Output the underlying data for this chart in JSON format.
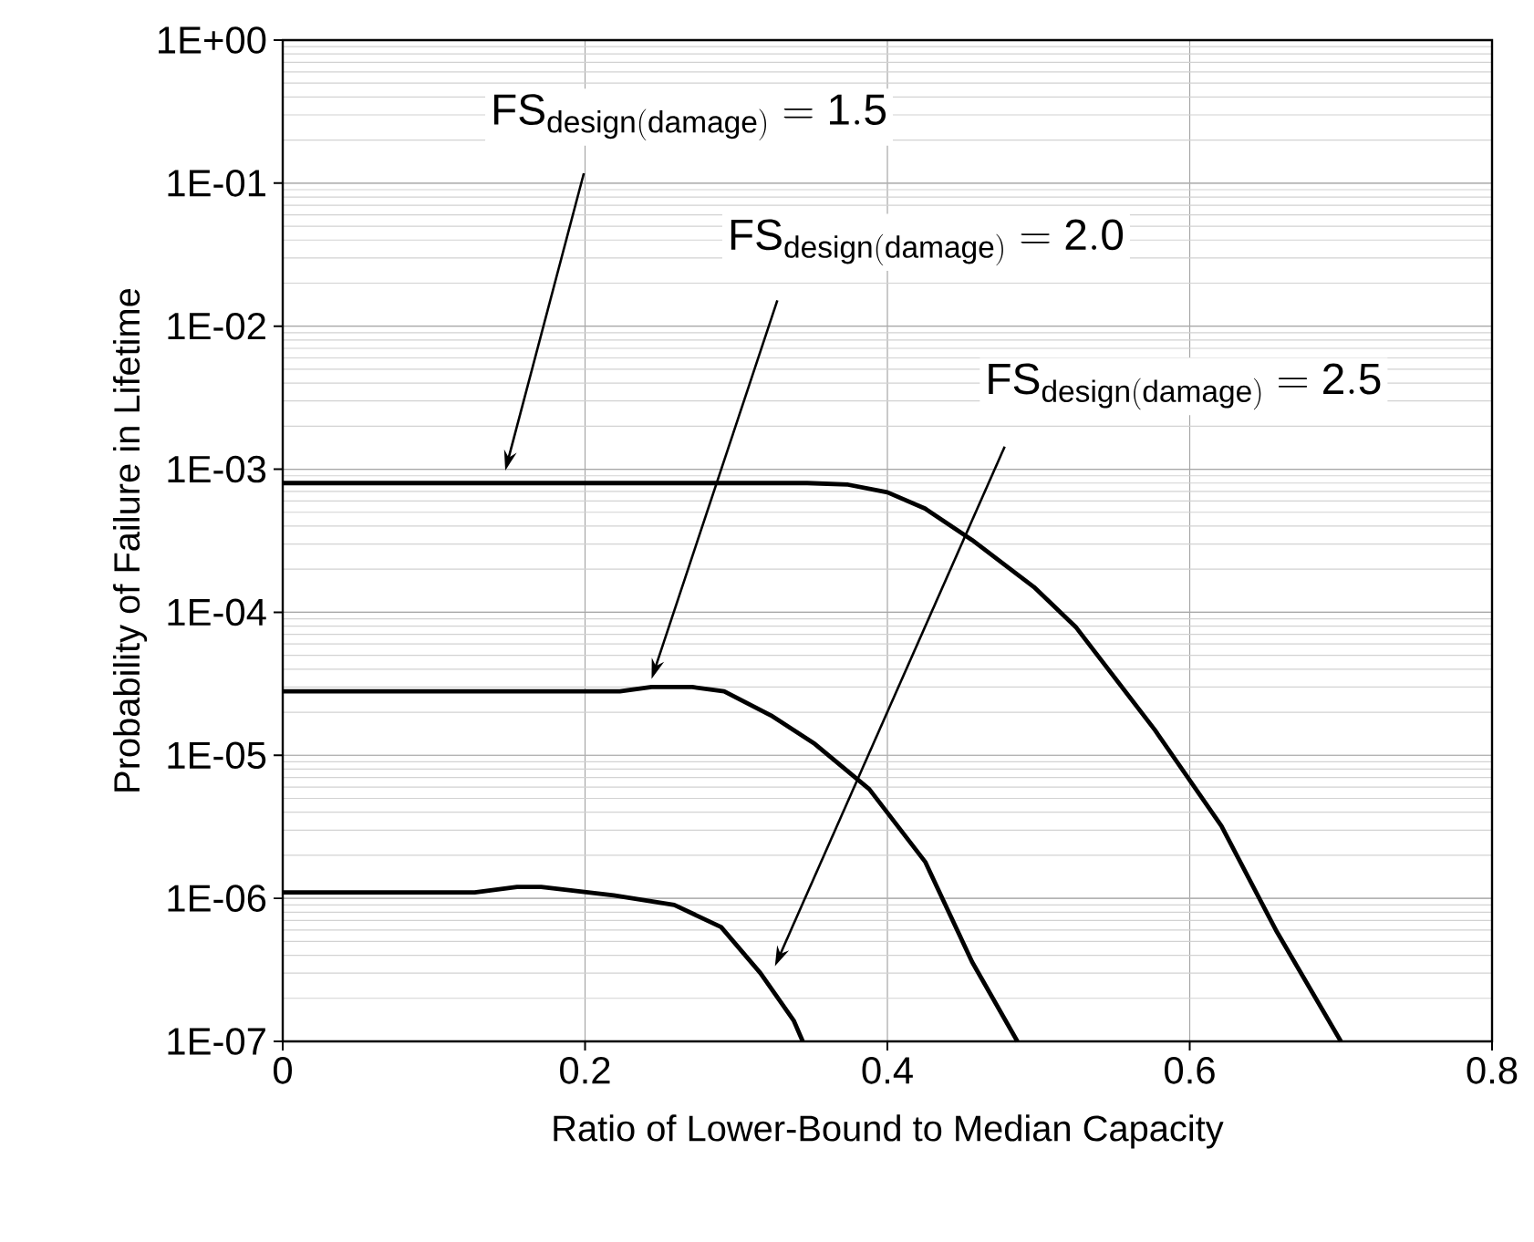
{
  "chart_data": {
    "type": "line",
    "xlabel": "Ratio of Lower-Bound to Median Capacity",
    "ylabel": "Probability of Failure in Lifetime",
    "log": "y",
    "grid": true,
    "line_style": "solid",
    "xlim": [
      0,
      0.8
    ],
    "xticks": [
      0,
      0.2,
      0.4,
      0.6,
      0.8
    ],
    "ylim": [
      1e-07,
      1
    ],
    "yticks": [
      {
        "value": 1e-07,
        "label": "1E-07"
      },
      {
        "value": 1e-06,
        "label": "1E-06"
      },
      {
        "value": 1e-05,
        "label": "1E-05"
      },
      {
        "value": 0.0001,
        "label": "1E-04"
      },
      {
        "value": 0.001,
        "label": "1E-03"
      },
      {
        "value": 0.01,
        "label": "1E-02"
      },
      {
        "value": 0.1,
        "label": "1E-01"
      },
      {
        "value": 1,
        "label": "1E+00"
      }
    ],
    "series": [
      {
        "color": "#000000",
        "x": [
          0,
          0.347,
          0.374,
          0.4,
          0.425,
          0.456,
          0.497,
          0.525,
          0.577,
          0.621,
          0.657,
          0.7
        ],
        "values": [
          0.0008,
          0.0008,
          0.00078,
          0.00069,
          0.00053,
          0.00032,
          0.00015,
          7.8e-05,
          1.5e-05,
          3.2e-06,
          6e-07,
          1e-07
        ]
      },
      {
        "color": "#000000",
        "x": [
          0,
          0.223,
          0.244,
          0.271,
          0.292,
          0.323,
          0.352,
          0.388,
          0.425,
          0.456,
          0.486
        ],
        "values": [
          2.8e-05,
          2.8e-05,
          3e-05,
          3e-05,
          2.8e-05,
          1.9e-05,
          1.2e-05,
          5.8e-06,
          1.8e-06,
          3.6e-07,
          1e-07
        ]
      },
      {
        "color": "#000000",
        "x": [
          0,
          0.127,
          0.155,
          0.171,
          0.219,
          0.259,
          0.29,
          0.316,
          0.338,
          0.344
        ],
        "values": [
          1.1e-06,
          1.1e-06,
          1.2e-06,
          1.2e-06,
          1.05e-06,
          9e-07,
          6.3e-07,
          3e-07,
          1.4e-07,
          1e-07
        ]
      }
    ],
    "annotations": [
      "\\mathrm{FS}_{\\mathrm{design(damage)}}\\mathrm{\\ {=}\\ 1.5}",
      "\\mathrm{FS}_{\\mathrm{design(damage)}}\\mathrm{\\ {=}\\ 2.0}",
      "\\mathrm{FS}_{\\mathrm{design(damage)}}\\mathrm{\\ {=}\\ 2.5}"
    ]
  }
}
